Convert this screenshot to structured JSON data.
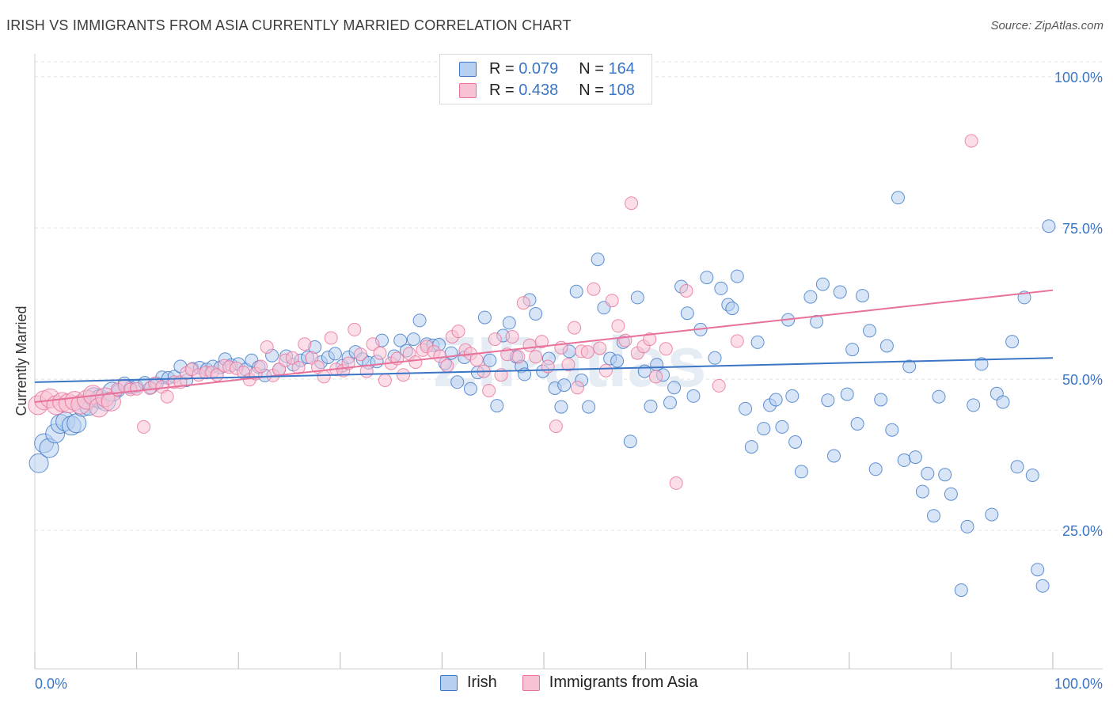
{
  "title": "IRISH VS IMMIGRANTS FROM ASIA CURRENTLY MARRIED CORRELATION CHART",
  "source": "Source: ZipAtlas.com",
  "watermark": "ZIPatlas",
  "legend": {
    "rows": [
      {
        "r_label": "R =",
        "r_value": "0.079",
        "n_label": "N =",
        "n_value": "164"
      },
      {
        "r_label": "R =",
        "r_value": "0.438",
        "n_label": "N =",
        "n_value": "108"
      }
    ]
  },
  "colors": {
    "irish": "#3b75c6",
    "asia": "#e8709a",
    "irish_fill": "#b7cff1",
    "asia_fill": "#f7c3d3",
    "axis_label": "#3b75c6"
  },
  "chart_data": {
    "type": "scatter",
    "title": "IRISH VS IMMIGRANTS FROM ASIA CURRENTLY MARRIED CORRELATION CHART",
    "xlabel": "",
    "ylabel": "Currently Married",
    "xlim": [
      0,
      100
    ],
    "ylim": [
      0,
      105
    ],
    "x_tick_labels": [
      "0.0%",
      "100.0%"
    ],
    "y_ticks": [
      25,
      50,
      75,
      100
    ],
    "y_tick_labels": [
      "25.0%",
      "50.0%",
      "75.0%",
      "100.0%"
    ],
    "series": [
      {
        "name": "Irish",
        "R": 0.079,
        "N": 164,
        "trend": {
          "x": [
            0,
            100
          ],
          "y": [
            49.5,
            53.5
          ]
        },
        "points": [
          [
            0.4,
            36.1
          ],
          [
            0.9,
            39.4
          ],
          [
            1.4,
            38.6
          ],
          [
            2.0,
            41.0
          ],
          [
            2.5,
            42.6
          ],
          [
            3.0,
            43.0
          ],
          [
            3.6,
            42.3
          ],
          [
            4.1,
            42.7
          ],
          [
            4.7,
            45.4
          ],
          [
            5.3,
            45.6
          ],
          [
            5.8,
            47.0
          ],
          [
            6.4,
            46.7
          ],
          [
            7.0,
            46.3
          ],
          [
            7.6,
            47.9
          ],
          [
            8.2,
            48.1
          ],
          [
            8.8,
            49.3
          ],
          [
            9.4,
            48.6
          ],
          [
            10.0,
            48.8
          ],
          [
            10.8,
            49.4
          ],
          [
            11.4,
            48.6
          ],
          [
            12.0,
            49.3
          ],
          [
            12.5,
            50.3
          ],
          [
            13.1,
            50.2
          ],
          [
            13.7,
            50.4
          ],
          [
            14.3,
            52.1
          ],
          [
            14.9,
            49.8
          ],
          [
            15.5,
            51.7
          ],
          [
            16.2,
            51.9
          ],
          [
            16.9,
            51.6
          ],
          [
            17.5,
            52.1
          ],
          [
            18.2,
            51.9
          ],
          [
            18.7,
            53.3
          ],
          [
            19.3,
            52.3
          ],
          [
            20.0,
            52.5
          ],
          [
            20.7,
            51.6
          ],
          [
            21.3,
            53.1
          ],
          [
            22.0,
            52.0
          ],
          [
            22.6,
            50.6
          ],
          [
            23.3,
            53.9
          ],
          [
            24.0,
            51.6
          ],
          [
            24.7,
            53.8
          ],
          [
            25.4,
            52.4
          ],
          [
            26.1,
            53.1
          ],
          [
            26.8,
            53.6
          ],
          [
            27.5,
            55.3
          ],
          [
            28.1,
            52.8
          ],
          [
            28.8,
            53.6
          ],
          [
            29.5,
            54.2
          ],
          [
            30.2,
            52.2
          ],
          [
            30.8,
            53.6
          ],
          [
            31.5,
            54.5
          ],
          [
            32.2,
            53.3
          ],
          [
            32.8,
            52.7
          ],
          [
            33.6,
            52.9
          ],
          [
            34.1,
            56.4
          ],
          [
            35.3,
            53.8
          ],
          [
            35.9,
            56.4
          ],
          [
            36.5,
            54.7
          ],
          [
            37.2,
            56.6
          ],
          [
            37.8,
            59.7
          ],
          [
            38.5,
            55.8
          ],
          [
            39.1,
            55.6
          ],
          [
            39.7,
            55.7
          ],
          [
            40.3,
            52.6
          ],
          [
            40.9,
            54.3
          ],
          [
            41.5,
            49.5
          ],
          [
            42.2,
            53.6
          ],
          [
            42.8,
            48.4
          ],
          [
            43.5,
            51.1
          ],
          [
            44.2,
            60.2
          ],
          [
            44.7,
            53.1
          ],
          [
            45.4,
            45.6
          ],
          [
            46.0,
            57.2
          ],
          [
            46.6,
            59.3
          ],
          [
            47.3,
            53.7
          ],
          [
            47.8,
            52.1
          ],
          [
            48.1,
            50.8
          ],
          [
            48.6,
            63.1
          ],
          [
            49.2,
            60.8
          ],
          [
            49.9,
            51.3
          ],
          [
            50.5,
            53.4
          ],
          [
            51.1,
            48.5
          ],
          [
            51.7,
            45.4
          ],
          [
            52.0,
            49.0
          ],
          [
            52.5,
            54.6
          ],
          [
            53.2,
            64.5
          ],
          [
            53.7,
            49.8
          ],
          [
            54.4,
            45.4
          ],
          [
            55.3,
            69.8
          ],
          [
            55.9,
            61.8
          ],
          [
            56.5,
            53.4
          ],
          [
            57.2,
            53.0
          ],
          [
            57.8,
            56.1
          ],
          [
            58.5,
            39.7
          ],
          [
            59.2,
            63.5
          ],
          [
            59.9,
            51.3
          ],
          [
            60.5,
            45.5
          ],
          [
            61.1,
            52.4
          ],
          [
            61.7,
            50.7
          ],
          [
            62.4,
            46.1
          ],
          [
            62.8,
            48.6
          ],
          [
            63.5,
            65.3
          ],
          [
            64.1,
            60.9
          ],
          [
            64.7,
            47.2
          ],
          [
            65.4,
            58.2
          ],
          [
            66.0,
            66.8
          ],
          [
            66.8,
            53.5
          ],
          [
            67.4,
            65.0
          ],
          [
            68.1,
            62.3
          ],
          [
            68.5,
            61.7
          ],
          [
            69.0,
            67.0
          ],
          [
            69.8,
            45.1
          ],
          [
            70.4,
            38.8
          ],
          [
            71.0,
            56.1
          ],
          [
            71.6,
            41.8
          ],
          [
            72.2,
            45.7
          ],
          [
            72.8,
            46.6
          ],
          [
            73.4,
            42.1
          ],
          [
            74.0,
            59.8
          ],
          [
            74.4,
            47.2
          ],
          [
            74.7,
            39.6
          ],
          [
            75.3,
            34.7
          ],
          [
            76.2,
            63.6
          ],
          [
            76.8,
            59.5
          ],
          [
            77.4,
            65.7
          ],
          [
            77.9,
            46.5
          ],
          [
            78.5,
            37.3
          ],
          [
            79.1,
            64.4
          ],
          [
            79.8,
            47.5
          ],
          [
            80.3,
            54.9
          ],
          [
            80.8,
            42.6
          ],
          [
            81.3,
            63.8
          ],
          [
            82.0,
            58.0
          ],
          [
            82.6,
            35.1
          ],
          [
            83.1,
            46.6
          ],
          [
            83.7,
            55.5
          ],
          [
            84.2,
            41.6
          ],
          [
            84.8,
            80.0
          ],
          [
            85.4,
            36.6
          ],
          [
            85.9,
            52.1
          ],
          [
            86.5,
            37.1
          ],
          [
            87.2,
            31.4
          ],
          [
            87.7,
            34.4
          ],
          [
            88.3,
            27.4
          ],
          [
            88.8,
            47.1
          ],
          [
            89.4,
            34.2
          ],
          [
            90.0,
            31.0
          ],
          [
            91.0,
            15.1
          ],
          [
            91.6,
            25.6
          ],
          [
            92.2,
            45.7
          ],
          [
            93.0,
            52.5
          ],
          [
            94.0,
            27.6
          ],
          [
            94.5,
            47.6
          ],
          [
            95.1,
            46.2
          ],
          [
            96.0,
            56.2
          ],
          [
            96.5,
            35.5
          ],
          [
            97.2,
            63.5
          ],
          [
            98.0,
            34.1
          ],
          [
            98.5,
            18.5
          ],
          [
            99.0,
            15.8
          ],
          [
            99.6,
            75.3
          ]
        ]
      },
      {
        "name": "Immigrants from Asia",
        "R": 0.438,
        "N": 108,
        "trend": {
          "x": [
            0,
            100
          ],
          "y": [
            46.2,
            64.7
          ]
        },
        "points": [
          [
            0.3,
            45.7
          ],
          [
            0.9,
            46.5
          ],
          [
            1.5,
            46.8
          ],
          [
            2.1,
            45.7
          ],
          [
            2.7,
            46.2
          ],
          [
            3.3,
            46.0
          ],
          [
            3.9,
            46.4
          ],
          [
            4.5,
            45.8
          ],
          [
            5.1,
            46.6
          ],
          [
            5.7,
            47.4
          ],
          [
            6.3,
            45.3
          ],
          [
            6.9,
            47.0
          ],
          [
            7.5,
            46.3
          ],
          [
            8.1,
            48.3
          ],
          [
            8.8,
            48.9
          ],
          [
            9.4,
            48.3
          ],
          [
            10.0,
            48.4
          ],
          [
            10.7,
            42.1
          ],
          [
            11.3,
            48.5
          ],
          [
            11.8,
            49.3
          ],
          [
            12.5,
            48.7
          ],
          [
            13.0,
            47.1
          ],
          [
            13.7,
            49.5
          ],
          [
            14.3,
            49.5
          ],
          [
            14.9,
            51.0
          ],
          [
            15.4,
            51.6
          ],
          [
            16.1,
            50.7
          ],
          [
            16.8,
            51.1
          ],
          [
            17.4,
            51.1
          ],
          [
            17.9,
            50.7
          ],
          [
            18.6,
            52.2
          ],
          [
            19.1,
            52.0
          ],
          [
            19.8,
            51.8
          ],
          [
            20.5,
            51.1
          ],
          [
            21.1,
            49.9
          ],
          [
            21.7,
            50.9
          ],
          [
            22.2,
            52.1
          ],
          [
            22.8,
            55.3
          ],
          [
            23.4,
            50.6
          ],
          [
            24.0,
            51.6
          ],
          [
            24.6,
            53.1
          ],
          [
            25.3,
            53.5
          ],
          [
            25.9,
            51.9
          ],
          [
            26.5,
            55.8
          ],
          [
            27.2,
            53.5
          ],
          [
            27.8,
            52.0
          ],
          [
            28.4,
            50.4
          ],
          [
            29.1,
            56.8
          ],
          [
            29.6,
            51.6
          ],
          [
            30.3,
            51.4
          ],
          [
            30.8,
            52.6
          ],
          [
            31.4,
            58.2
          ],
          [
            32.0,
            54.1
          ],
          [
            32.6,
            51.3
          ],
          [
            33.2,
            55.8
          ],
          [
            33.9,
            54.3
          ],
          [
            34.4,
            49.8
          ],
          [
            35.0,
            52.6
          ],
          [
            35.6,
            53.4
          ],
          [
            36.2,
            50.7
          ],
          [
            36.8,
            54.2
          ],
          [
            37.4,
            52.8
          ],
          [
            38.1,
            54.8
          ],
          [
            38.5,
            55.4
          ],
          [
            39.2,
            54.5
          ],
          [
            39.8,
            53.8
          ],
          [
            40.5,
            52.2
          ],
          [
            41.0,
            57.0
          ],
          [
            41.6,
            57.9
          ],
          [
            42.3,
            54.8
          ],
          [
            42.8,
            54.2
          ],
          [
            43.4,
            53.2
          ],
          [
            44.1,
            51.3
          ],
          [
            44.6,
            48.1
          ],
          [
            45.2,
            56.6
          ],
          [
            45.8,
            50.7
          ],
          [
            46.4,
            54.1
          ],
          [
            46.9,
            57.0
          ],
          [
            47.5,
            53.7
          ],
          [
            48.0,
            62.6
          ],
          [
            48.6,
            55.6
          ],
          [
            49.2,
            53.7
          ],
          [
            49.8,
            56.2
          ],
          [
            50.4,
            52.1
          ],
          [
            51.2,
            42.2
          ],
          [
            51.7,
            55.2
          ],
          [
            52.4,
            52.4
          ],
          [
            53.0,
            58.5
          ],
          [
            53.3,
            48.6
          ],
          [
            53.7,
            54.6
          ],
          [
            54.3,
            54.5
          ],
          [
            54.9,
            64.9
          ],
          [
            55.5,
            55.1
          ],
          [
            56.1,
            51.4
          ],
          [
            56.7,
            63.0
          ],
          [
            57.3,
            58.8
          ],
          [
            58.0,
            56.4
          ],
          [
            58.6,
            79.1
          ],
          [
            59.2,
            54.3
          ],
          [
            59.8,
            55.4
          ],
          [
            60.4,
            56.6
          ],
          [
            61.0,
            50.4
          ],
          [
            62.0,
            55.0
          ],
          [
            63.0,
            32.8
          ],
          [
            64.0,
            64.6
          ],
          [
            67.2,
            48.9
          ],
          [
            69.0,
            56.3
          ],
          [
            92.0,
            89.4
          ]
        ]
      }
    ]
  }
}
